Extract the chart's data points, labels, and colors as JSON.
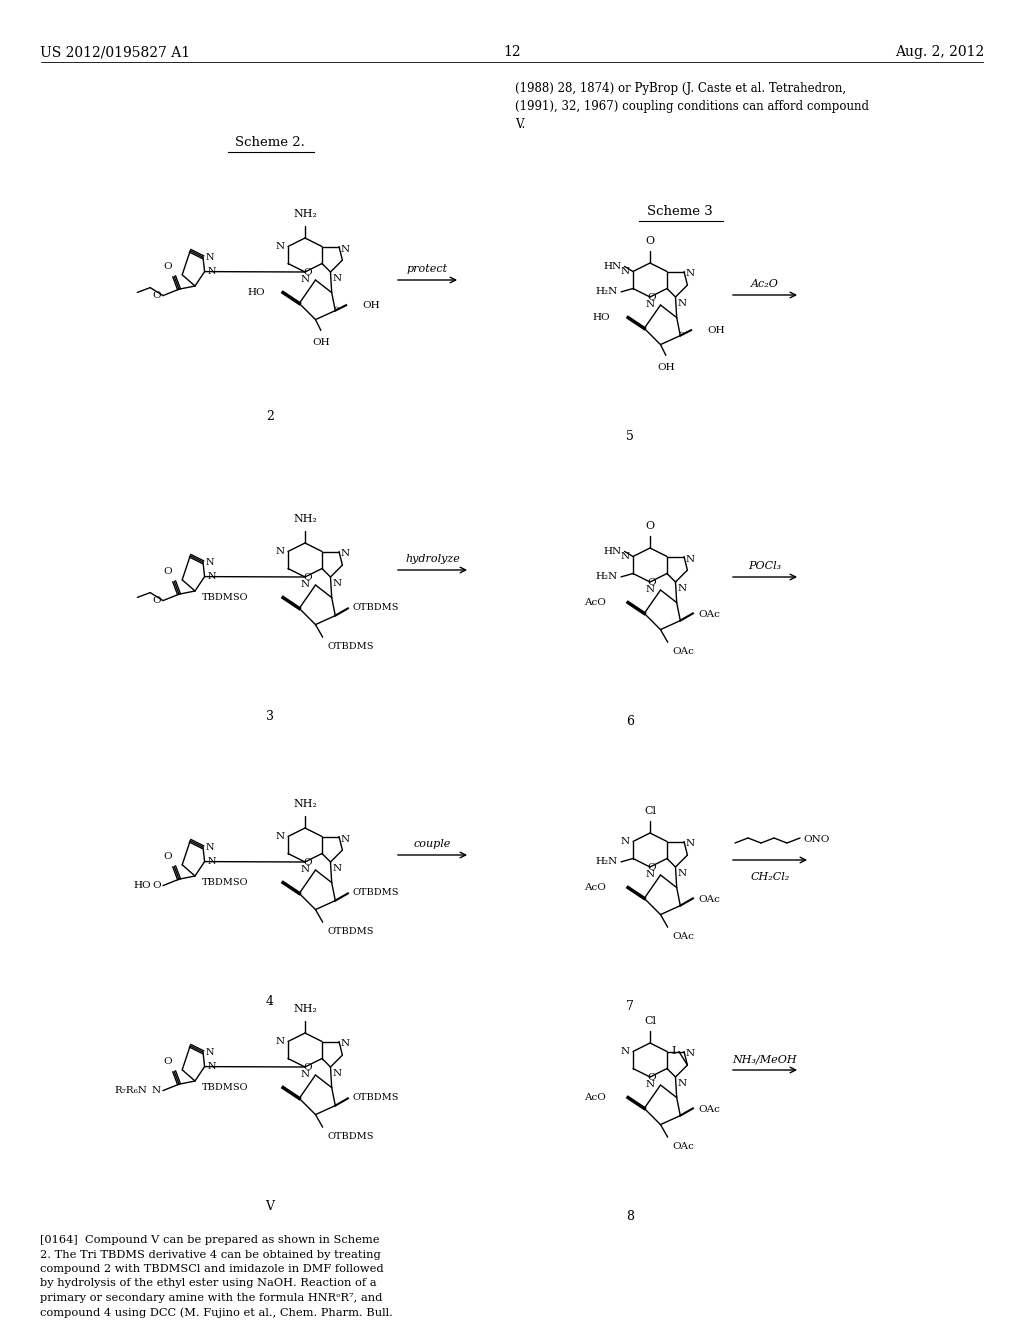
{
  "page_number": "12",
  "patent_number": "US 2012/0195827 A1",
  "patent_date": "Aug. 2, 2012",
  "background_color": "#ffffff",
  "text_color": "#000000",
  "figsize": [
    10.24,
    13.2
  ],
  "dpi": 100
}
